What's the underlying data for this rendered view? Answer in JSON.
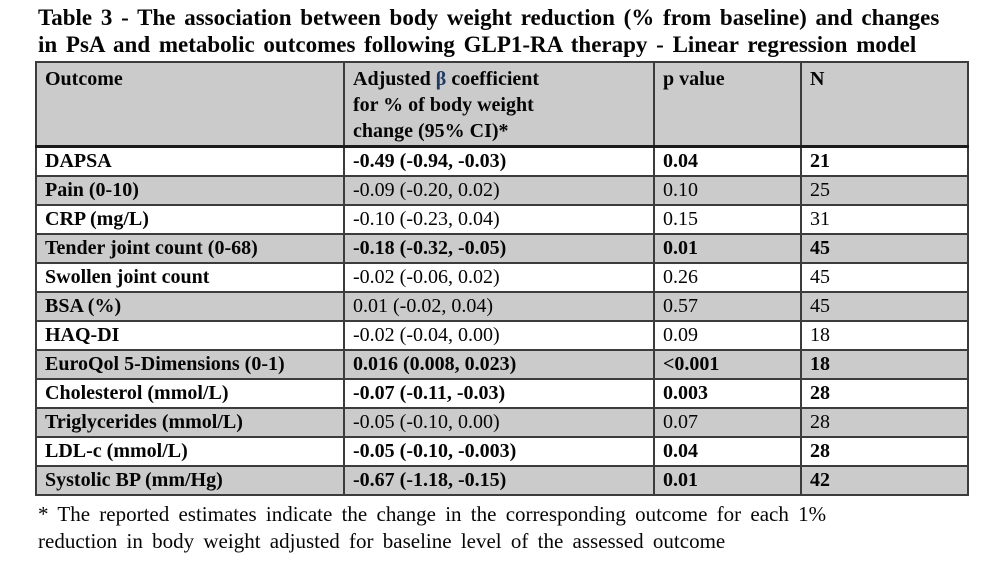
{
  "title": "Table 3 - The association between body weight reduction (% from baseline) and changes\nin PsA and metabolic outcomes following GLP1-RA therapy - Linear regression model",
  "table": {
    "headers": {
      "outcome": "Outcome",
      "coefficient_pre": "Adjusted ",
      "coefficient_beta": "β",
      "coefficient_post": " coefficient\nfor % of body weight\nchange (95% CI)*",
      "p_value": "p value",
      "n": "N"
    },
    "rows": [
      {
        "outcome": "DAPSA",
        "coefficient": "-0.49 (-0.94, -0.03)",
        "p": "0.04",
        "n": "21",
        "significant": true
      },
      {
        "outcome": "Pain (0-10)",
        "coefficient": "-0.09 (-0.20, 0.02)",
        "p": "0.10",
        "n": "25",
        "significant": false
      },
      {
        "outcome": "CRP (mg/L)",
        "coefficient": "-0.10 (-0.23, 0.04)",
        "p": "0.15",
        "n": "31",
        "significant": false
      },
      {
        "outcome": "Tender joint count (0-68)",
        "coefficient": "-0.18 (-0.32, -0.05)",
        "p": "0.01",
        "n": "45",
        "significant": true
      },
      {
        "outcome": "Swollen joint count",
        "coefficient": "-0.02 (-0.06, 0.02)",
        "p": "0.26",
        "n": "45",
        "significant": false
      },
      {
        "outcome": "BSA (%)",
        "coefficient": "0.01 (-0.02, 0.04)",
        "p": "0.57",
        "n": "45",
        "significant": false
      },
      {
        "outcome": "HAQ-DI",
        "coefficient": "-0.02 (-0.04, 0.00)",
        "p": "0.09",
        "n": "18",
        "significant": false
      },
      {
        "outcome": "EuroQol 5-Dimensions (0-1)",
        "coefficient": "0.016 (0.008, 0.023)",
        "p": "<0.001",
        "n": "18",
        "significant": true
      },
      {
        "outcome": "Cholesterol (mmol/L)",
        "coefficient": "-0.07 (-0.11, -0.03)",
        "p": "0.003",
        "n": "28",
        "significant": true
      },
      {
        "outcome": "Triglycerides (mmol/L)",
        "coefficient": "-0.05 (-0.10, 0.00)",
        "p": "0.07",
        "n": "28",
        "significant": false
      },
      {
        "outcome": "LDL-c (mmol/L)",
        "coefficient": "-0.05 (-0.10, -0.003)",
        "p": "0.04",
        "n": "28",
        "significant": true
      },
      {
        "outcome": "Systolic BP (mm/Hg)",
        "coefficient": "-0.67 (-1.18, -0.15)",
        "p": "0.01",
        "n": "42",
        "significant": true
      }
    ]
  },
  "footnote": "* The reported estimates indicate the change in the corresponding outcome for each 1%\nreduction in body weight adjusted for baseline level of the assessed outcome",
  "colors": {
    "beta_symbol": "#1f3864",
    "row_shading": "#cbcbcb"
  }
}
